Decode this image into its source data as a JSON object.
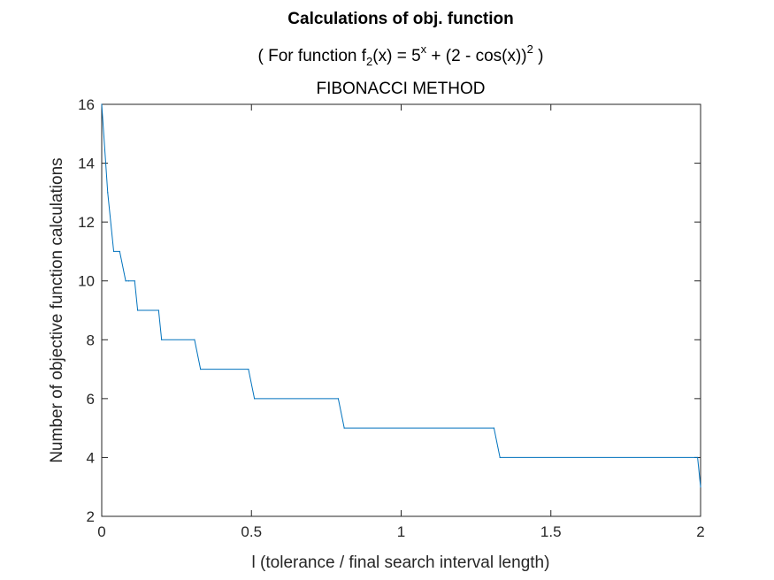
{
  "chart_data": {
    "type": "line",
    "title": "Calculations of obj. function",
    "subtitle": {
      "prefix": "( For function f",
      "sub": "2",
      "mid": "(x) = 5",
      "sup1": "x",
      "rest": " + (2 - cos(x))",
      "sup2": "2",
      "suffix": " )"
    },
    "subtitle2": "FIBONACCI METHOD",
    "xlabel": "l (tolerance / final search interval length)",
    "ylabel": "Number of objective function calculations",
    "xlim": [
      0,
      2
    ],
    "ylim": [
      2,
      16
    ],
    "xticks": [
      0,
      0.5,
      1,
      1.5,
      2
    ],
    "xtick_labels": [
      "0",
      "0.5",
      "1",
      "1.5",
      "2"
    ],
    "yticks": [
      2,
      4,
      6,
      8,
      10,
      12,
      14,
      16
    ],
    "ytick_labels": [
      "2",
      "4",
      "6",
      "8",
      "10",
      "12",
      "14",
      "16"
    ],
    "grid": false,
    "line_color": "#0072BD",
    "x": [
      0,
      0.02,
      0.04,
      0.06,
      0.08,
      0.09,
      0.11,
      0.12,
      0.19,
      0.2,
      0.31,
      0.33,
      0.49,
      0.51,
      0.79,
      0.81,
      1.31,
      1.33,
      1.99,
      2.0
    ],
    "y": [
      16,
      13,
      11,
      11,
      10,
      10,
      10,
      9,
      9,
      8,
      8,
      7,
      7,
      6,
      6,
      5,
      5,
      4,
      4,
      3
    ]
  }
}
